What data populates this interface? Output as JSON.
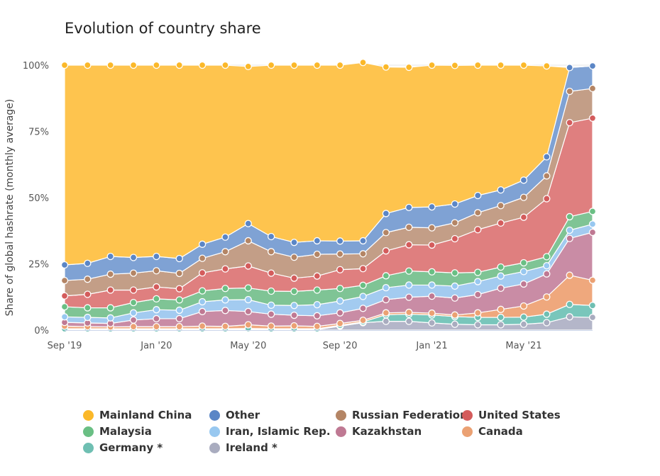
{
  "chart_data": {
    "type": "area",
    "title": "Evolution of country share",
    "ylabel": "Share of global hashrate (monthly average)",
    "xlabel": "",
    "ylim": [
      0,
      100
    ],
    "y_ticks": [
      "0%",
      "25%",
      "50%",
      "75%",
      "100%"
    ],
    "x_ticks": [
      "Sep '19",
      "Jan '20",
      "May '20",
      "Sep '20",
      "Jan '21",
      "May '21"
    ],
    "x": [
      "Sep '19",
      "Oct '19",
      "Nov '19",
      "Dec '19",
      "Jan '20",
      "Feb '20",
      "Mar '20",
      "Apr '20",
      "May '20",
      "Jun '20",
      "Jul '20",
      "Aug '20",
      "Sep '20",
      "Oct '20",
      "Nov '20",
      "Dec '20",
      "Jan '21",
      "Feb '21",
      "Mar '21",
      "Apr '21",
      "May '21",
      "Jun '21",
      "Jul '21",
      "Aug '21"
    ],
    "stacking": "cumulative, bottom to top: Ireland *, Germany *, Canada, Kazakhstan, Iran, Islamic Rep., Malaysia, United States, Russian Federation, Other, Mainland China",
    "series": [
      {
        "name": "Ireland *",
        "color": "#b4b6c9",
        "values": [
          0.2,
          0.2,
          0.2,
          0.2,
          0.2,
          0.2,
          0.2,
          0.2,
          0.3,
          0.2,
          0.2,
          0.2,
          1.5,
          2.8,
          3.3,
          3.3,
          2.7,
          2.2,
          2.0,
          2.0,
          2.2,
          2.8,
          5.0,
          4.8
        ]
      },
      {
        "name": "Germany *",
        "color": "#79c6bb",
        "values": [
          0.3,
          0.3,
          0.3,
          0.3,
          0.3,
          0.3,
          0.3,
          0.3,
          0.3,
          0.3,
          0.3,
          0.3,
          0.3,
          0.3,
          2.5,
          2.7,
          3.0,
          2.9,
          2.8,
          2.8,
          2.7,
          3.2,
          4.7,
          4.5
        ]
      },
      {
        "name": "Canada",
        "color": "#efa87d",
        "values": [
          1.0,
          0.8,
          0.7,
          0.8,
          0.8,
          0.8,
          1.0,
          0.9,
          1.4,
          1.0,
          1.1,
          0.9,
          0.7,
          0.6,
          0.7,
          0.7,
          0.7,
          0.6,
          1.7,
          3.0,
          4.2,
          6.5,
          11.0,
          9.5
        ]
      },
      {
        "name": "Kazakhstan",
        "color": "#c98ca5",
        "values": [
          1.4,
          1.4,
          1.3,
          2.5,
          3.0,
          3.0,
          5.5,
          6.0,
          5.0,
          4.5,
          4.0,
          4.0,
          4.0,
          4.5,
          5.0,
          5.7,
          6.4,
          6.4,
          6.9,
          8.0,
          8.3,
          8.7,
          13.9,
          18.1
        ]
      },
      {
        "name": "Iran, Islamic Rep.",
        "color": "#a3cbf0",
        "values": [
          2.1,
          2.1,
          2.1,
          2.7,
          3.4,
          3.2,
          3.7,
          4.0,
          4.5,
          3.4,
          3.7,
          4.2,
          4.5,
          4.5,
          4.5,
          4.6,
          4.2,
          4.5,
          4.9,
          4.6,
          4.7,
          3.1,
          3.1,
          3.1
        ]
      },
      {
        "name": "Malaysia",
        "color": "#7fc495",
        "values": [
          3.8,
          3.6,
          3.8,
          3.9,
          4.1,
          3.9,
          4.1,
          4.3,
          4.4,
          5.3,
          5.3,
          5.5,
          4.7,
          4.2,
          4.5,
          5.3,
          5.0,
          5.0,
          3.5,
          3.4,
          3.3,
          3.4,
          5.1,
          4.8
        ]
      },
      {
        "name": "United States",
        "color": "#df7f7f",
        "values": [
          4.1,
          5.1,
          6.7,
          4.7,
          4.5,
          4.2,
          6.8,
          7.4,
          8.3,
          6.8,
          5.0,
          5.3,
          7.1,
          6.3,
          9.4,
          9.9,
          10.1,
          12.9,
          16.1,
          16.6,
          17.2,
          21.9,
          35.5,
          35.2
        ]
      },
      {
        "name": "Russian Federation",
        "color": "#c39e87",
        "values": [
          5.8,
          5.7,
          6.0,
          6.4,
          6.1,
          5.8,
          5.5,
          6.5,
          9.5,
          8.1,
          7.9,
          8.2,
          5.9,
          5.6,
          6.9,
          6.6,
          6.5,
          6.0,
          6.4,
          6.6,
          7.5,
          8.6,
          11.8,
          11.2
        ]
      },
      {
        "name": "Other",
        "color": "#7fa2d4",
        "values": [
          5.9,
          6.0,
          6.7,
          5.9,
          5.4,
          5.6,
          5.3,
          5.5,
          6.5,
          5.7,
          5.6,
          5.1,
          4.9,
          4.9,
          7.2,
          7.5,
          7.9,
          7.1,
          6.5,
          5.9,
          6.5,
          7.2,
          9.0,
          8.5
        ]
      },
      {
        "name": "Mainland China",
        "color": "#fec44e",
        "values": [
          75.4,
          74.8,
          72.2,
          72.6,
          72.2,
          73.0,
          67.6,
          64.9,
          59.3,
          64.7,
          66.9,
          66.3,
          66.4,
          67.3,
          55.3,
          52.9,
          53.5,
          52.3,
          49.2,
          47.1,
          43.4,
          34.3,
          0,
          0
        ]
      }
    ],
    "legend": {
      "placement": "bottom",
      "columns": 4
    },
    "grid": {
      "y": true,
      "x": false
    }
  },
  "legend_items": [
    {
      "label": "Mainland China",
      "color": "#fbb829",
      "icon": "dot"
    },
    {
      "label": "Other",
      "color": "#5b86c6",
      "icon": "dot"
    },
    {
      "label": "Russian Federation",
      "color": "#b48565",
      "icon": "dot"
    },
    {
      "label": "United States",
      "color": "#d45c5c",
      "icon": "dot"
    },
    {
      "label": "Malaysia",
      "color": "#6abf84",
      "icon": "dot"
    },
    {
      "label": "Iran, Islamic Rep.",
      "color": "#98c8f0",
      "icon": "dot"
    },
    {
      "label": "Kazakhstan",
      "color": "#bf7993",
      "icon": "dot"
    },
    {
      "label": "Canada",
      "color": "#eba173",
      "icon": "dot"
    },
    {
      "label": "Germany *",
      "color": "#6fbfb2",
      "icon": "dot"
    },
    {
      "label": "Ireland *",
      "color": "#a9acbf",
      "icon": "dot"
    }
  ]
}
